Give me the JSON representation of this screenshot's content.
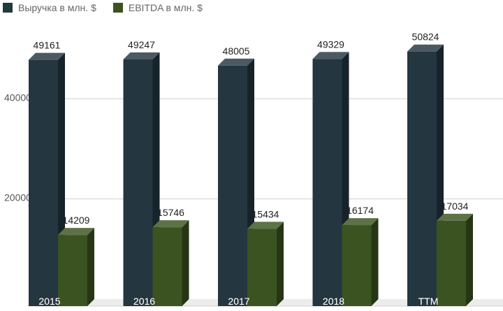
{
  "chart_data": {
    "type": "bar",
    "categories": [
      "2015",
      "2016",
      "2017",
      "2018",
      "TTM"
    ],
    "series": [
      {
        "name": "Выручка в млн. $",
        "values": [
          49161,
          49247,
          48005,
          49329,
          50824
        ],
        "color": "#243640"
      },
      {
        "name": "EBITDA в млн. $",
        "values": [
          14209,
          15746,
          15434,
          16174,
          17034
        ],
        "color": "#3b5320"
      }
    ],
    "yticks": [
      "20000",
      "40000"
    ],
    "ylim": [
      0,
      60000
    ],
    "grid": true,
    "legend": "top-left",
    "style": "3d"
  }
}
